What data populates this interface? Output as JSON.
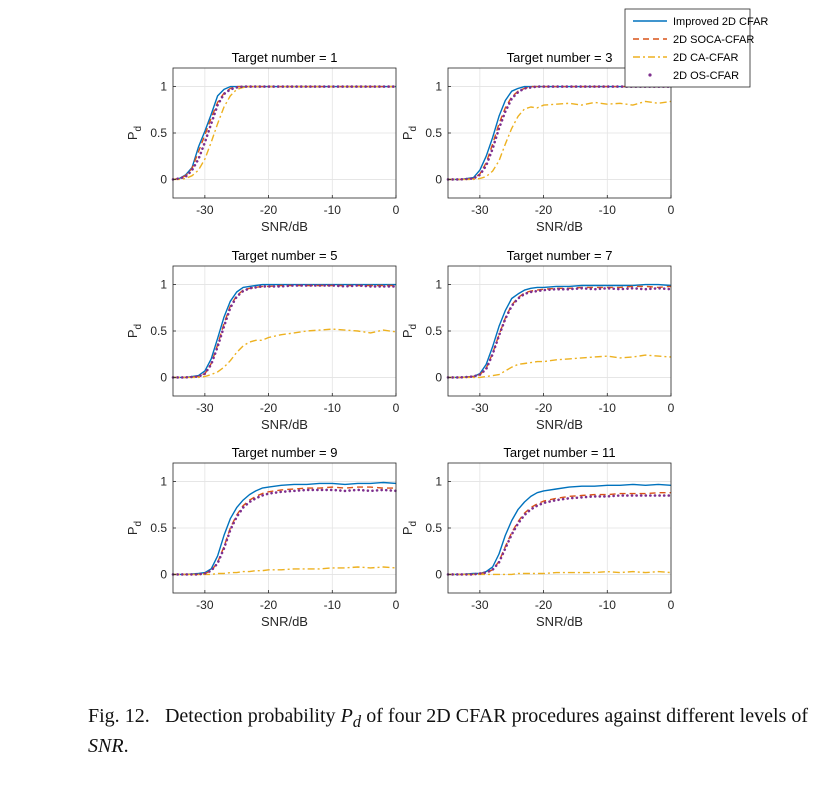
{
  "figure": {
    "caption": {
      "label": "Fig. 12.",
      "text_1": "Detection probability",
      "math_symbol": "P",
      "math_sub": "d",
      "text_2": "of four 2D CFAR procedures against different levels of",
      "math_snr": "SNR",
      "end": "."
    }
  },
  "chart_data": [
    {
      "type": "line",
      "title": "Target number = 1",
      "xlabel": "SNR/dB",
      "ylabel": "P",
      "ylabel_sub": "d",
      "xlim": [
        -35,
        0
      ],
      "ylim": [
        -0.2,
        1.2
      ],
      "xticks": [
        -30,
        -20,
        -10,
        0
      ],
      "yticks": [
        0,
        0.5,
        1
      ],
      "x": [
        -35,
        -34,
        -33,
        -32,
        -31,
        -30,
        -29,
        -28,
        -27,
        -26,
        -25,
        -24,
        -23,
        -22,
        -21,
        -20,
        -18,
        -16,
        -14,
        -12,
        -10,
        -8,
        -6,
        -4,
        -2,
        0
      ],
      "series": [
        {
          "name": "Improved 2D CFAR",
          "values": [
            0,
            0.01,
            0.05,
            0.13,
            0.35,
            0.52,
            0.7,
            0.9,
            0.97,
            1,
            1,
            1,
            1,
            1,
            1,
            1,
            1,
            1,
            1,
            1,
            1,
            1,
            1,
            1,
            1,
            1
          ]
        },
        {
          "name": "2D SOCA-CFAR",
          "values": [
            0,
            0.01,
            0.04,
            0.12,
            0.3,
            0.48,
            0.66,
            0.83,
            0.93,
            0.98,
            1,
            1,
            1,
            1,
            1,
            1,
            1,
            1,
            1,
            1,
            1,
            1,
            1,
            1,
            1,
            1
          ]
        },
        {
          "name": "2D CA-CFAR",
          "values": [
            0,
            0,
            0.01,
            0.04,
            0.1,
            0.22,
            0.4,
            0.6,
            0.78,
            0.9,
            0.97,
            0.99,
            1,
            1,
            1,
            1,
            1,
            1,
            1,
            1,
            1,
            1,
            1,
            1,
            1,
            1
          ]
        },
        {
          "name": "2D OS-CFAR",
          "values": [
            0,
            0.01,
            0.03,
            0.1,
            0.22,
            0.4,
            0.6,
            0.8,
            0.92,
            0.97,
            0.99,
            1,
            1,
            1,
            1,
            1,
            1,
            1,
            1,
            1,
            1,
            1,
            1,
            1,
            1,
            1
          ]
        }
      ]
    },
    {
      "type": "line",
      "title": "Target number = 3",
      "xlabel": "SNR/dB",
      "ylabel": "P",
      "ylabel_sub": "d",
      "xlim": [
        -35,
        0
      ],
      "ylim": [
        -0.2,
        1.2
      ],
      "xticks": [
        -30,
        -20,
        -10,
        0
      ],
      "yticks": [
        0,
        0.5,
        1
      ],
      "x": [
        -35,
        -33,
        -31,
        -30,
        -29,
        -28,
        -27,
        -26,
        -25,
        -24,
        -23,
        -22,
        -21,
        -20,
        -18,
        -16,
        -14,
        -12,
        -10,
        -8,
        -6,
        -4,
        -2,
        0
      ],
      "series": [
        {
          "name": "Improved 2D CFAR",
          "values": [
            0,
            0,
            0.02,
            0.1,
            0.25,
            0.45,
            0.68,
            0.85,
            0.95,
            0.98,
            1,
            1,
            1,
            1,
            1,
            1,
            1,
            1,
            1,
            1,
            1,
            1,
            1,
            1
          ]
        },
        {
          "name": "2D SOCA-CFAR",
          "values": [
            0,
            0,
            0.01,
            0.06,
            0.18,
            0.38,
            0.6,
            0.77,
            0.89,
            0.95,
            0.98,
            1,
            1,
            1,
            1,
            1,
            1,
            1,
            1,
            1,
            1,
            1,
            1,
            1
          ]
        },
        {
          "name": "2D CA-CFAR",
          "values": [
            0,
            0,
            0,
            0.01,
            0.03,
            0.09,
            0.2,
            0.38,
            0.55,
            0.68,
            0.76,
            0.78,
            0.77,
            0.8,
            0.81,
            0.82,
            0.8,
            0.83,
            0.81,
            0.82,
            0.8,
            0.84,
            0.82,
            0.84
          ]
        },
        {
          "name": "2D OS-CFAR",
          "values": [
            0,
            0,
            0.01,
            0.05,
            0.15,
            0.33,
            0.55,
            0.73,
            0.87,
            0.94,
            0.98,
            0.99,
            1,
            1,
            1,
            1,
            1,
            1,
            1,
            1,
            1,
            1,
            1,
            1
          ]
        }
      ]
    },
    {
      "type": "line",
      "title": "Target number = 5",
      "xlabel": "SNR/dB",
      "ylabel": "P",
      "ylabel_sub": "d",
      "xlim": [
        -35,
        0
      ],
      "ylim": [
        -0.2,
        1.2
      ],
      "xticks": [
        -30,
        -20,
        -10,
        0
      ],
      "yticks": [
        0,
        0.5,
        1
      ],
      "x": [
        -35,
        -33,
        -31,
        -30,
        -29,
        -28,
        -27,
        -26,
        -25,
        -24,
        -23,
        -22,
        -21,
        -20,
        -18,
        -16,
        -14,
        -12,
        -10,
        -8,
        -6,
        -4,
        -2,
        0
      ],
      "series": [
        {
          "name": "Improved 2D CFAR",
          "values": [
            0,
            0,
            0.02,
            0.07,
            0.2,
            0.42,
            0.65,
            0.82,
            0.92,
            0.97,
            0.98,
            0.99,
            1,
            1,
            1,
            1,
            1,
            1,
            1,
            1,
            1,
            1,
            1,
            1
          ]
        },
        {
          "name": "2D SOCA-CFAR",
          "values": [
            0,
            0,
            0.01,
            0.04,
            0.15,
            0.35,
            0.58,
            0.77,
            0.88,
            0.94,
            0.96,
            0.97,
            0.98,
            0.98,
            0.99,
            0.99,
            0.99,
            0.99,
            0.99,
            0.99,
            0.99,
            0.99,
            0.99,
            0.99
          ]
        },
        {
          "name": "2D CA-CFAR",
          "values": [
            0,
            0,
            0,
            0.01,
            0.03,
            0.06,
            0.11,
            0.18,
            0.27,
            0.34,
            0.38,
            0.4,
            0.4,
            0.43,
            0.46,
            0.48,
            0.5,
            0.51,
            0.52,
            0.51,
            0.5,
            0.48,
            0.51,
            0.49
          ]
        },
        {
          "name": "2D OS-CFAR",
          "values": [
            0,
            0,
            0.01,
            0.04,
            0.14,
            0.33,
            0.55,
            0.75,
            0.87,
            0.93,
            0.96,
            0.97,
            0.98,
            0.98,
            0.98,
            0.99,
            0.99,
            0.99,
            0.99,
            0.98,
            0.99,
            0.98,
            0.98,
            0.98
          ]
        }
      ]
    },
    {
      "type": "line",
      "title": "Target number = 7",
      "xlabel": "SNR/dB",
      "ylabel": "P",
      "ylabel_sub": "d",
      "xlim": [
        -35,
        0
      ],
      "ylim": [
        -0.2,
        1.2
      ],
      "xticks": [
        -30,
        -20,
        -10,
        0
      ],
      "yticks": [
        0,
        0.5,
        1
      ],
      "x": [
        -35,
        -33,
        -31,
        -30,
        -29,
        -28,
        -27,
        -26,
        -25,
        -24,
        -23,
        -22,
        -21,
        -20,
        -18,
        -16,
        -14,
        -12,
        -10,
        -8,
        -6,
        -4,
        -2,
        0
      ],
      "series": [
        {
          "name": "Improved 2D CFAR",
          "values": [
            0,
            0,
            0.01,
            0.04,
            0.14,
            0.33,
            0.55,
            0.72,
            0.85,
            0.9,
            0.94,
            0.96,
            0.97,
            0.97,
            0.98,
            0.98,
            0.99,
            0.99,
            0.99,
            0.99,
            0.99,
            1,
            1,
            0.99
          ]
        },
        {
          "name": "2D SOCA-CFAR",
          "values": [
            0,
            0,
            0.01,
            0.03,
            0.1,
            0.26,
            0.46,
            0.64,
            0.78,
            0.86,
            0.91,
            0.93,
            0.94,
            0.95,
            0.96,
            0.96,
            0.97,
            0.97,
            0.97,
            0.97,
            0.98,
            0.98,
            0.97,
            0.98
          ]
        },
        {
          "name": "2D CA-CFAR",
          "values": [
            0,
            0,
            0,
            0,
            0.01,
            0.02,
            0.03,
            0.07,
            0.11,
            0.14,
            0.15,
            0.16,
            0.17,
            0.17,
            0.19,
            0.2,
            0.21,
            0.22,
            0.23,
            0.21,
            0.22,
            0.24,
            0.23,
            0.22
          ]
        },
        {
          "name": "2D OS-CFAR",
          "values": [
            0,
            0,
            0.01,
            0.03,
            0.09,
            0.25,
            0.45,
            0.63,
            0.77,
            0.85,
            0.9,
            0.92,
            0.93,
            0.94,
            0.95,
            0.95,
            0.96,
            0.95,
            0.96,
            0.95,
            0.96,
            0.95,
            0.96,
            0.95
          ]
        }
      ]
    },
    {
      "type": "line",
      "title": "Target number = 9",
      "xlabel": "SNR/dB",
      "ylabel": "P",
      "ylabel_sub": "d",
      "xlim": [
        -35,
        0
      ],
      "ylim": [
        -0.2,
        1.2
      ],
      "xticks": [
        -30,
        -20,
        -10,
        0
      ],
      "yticks": [
        0,
        0.5,
        1
      ],
      "x": [
        -35,
        -33,
        -31,
        -30,
        -29,
        -28,
        -27,
        -26,
        -25,
        -24,
        -23,
        -22,
        -21,
        -20,
        -18,
        -16,
        -14,
        -12,
        -10,
        -8,
        -6,
        -4,
        -2,
        0
      ],
      "series": [
        {
          "name": "Improved 2D CFAR",
          "values": [
            0,
            0,
            0.01,
            0.02,
            0.06,
            0.2,
            0.42,
            0.6,
            0.72,
            0.8,
            0.86,
            0.9,
            0.93,
            0.94,
            0.96,
            0.97,
            0.97,
            0.98,
            0.98,
            0.97,
            0.98,
            0.98,
            0.99,
            0.98
          ]
        },
        {
          "name": "2D SOCA-CFAR",
          "values": [
            0,
            0,
            0,
            0.01,
            0.04,
            0.13,
            0.3,
            0.5,
            0.64,
            0.74,
            0.8,
            0.84,
            0.87,
            0.89,
            0.91,
            0.92,
            0.93,
            0.93,
            0.94,
            0.93,
            0.94,
            0.94,
            0.93,
            0.93
          ]
        },
        {
          "name": "2D CA-CFAR",
          "values": [
            0,
            0,
            0,
            0,
            0,
            0.01,
            0.01,
            0.02,
            0.02,
            0.03,
            0.03,
            0.04,
            0.04,
            0.05,
            0.05,
            0.06,
            0.06,
            0.06,
            0.07,
            0.07,
            0.08,
            0.07,
            0.08,
            0.07
          ]
        },
        {
          "name": "2D OS-CFAR",
          "values": [
            0,
            0,
            0,
            0.01,
            0.04,
            0.12,
            0.28,
            0.48,
            0.62,
            0.72,
            0.78,
            0.82,
            0.85,
            0.87,
            0.89,
            0.9,
            0.91,
            0.91,
            0.91,
            0.9,
            0.91,
            0.9,
            0.91,
            0.9
          ]
        }
      ]
    },
    {
      "type": "line",
      "title": "Target number = 11",
      "xlabel": "SNR/dB",
      "ylabel": "P",
      "ylabel_sub": "d",
      "xlim": [
        -35,
        0
      ],
      "ylim": [
        -0.2,
        1.2
      ],
      "xticks": [
        -30,
        -20,
        -10,
        0
      ],
      "yticks": [
        0,
        0.5,
        1
      ],
      "x": [
        -35,
        -33,
        -31,
        -30,
        -29,
        -28,
        -27,
        -26,
        -25,
        -24,
        -23,
        -22,
        -21,
        -20,
        -18,
        -16,
        -14,
        -12,
        -10,
        -8,
        -6,
        -4,
        -2,
        0
      ],
      "series": [
        {
          "name": "Improved 2D CFAR",
          "values": [
            0,
            0,
            0.01,
            0.01,
            0.03,
            0.08,
            0.22,
            0.42,
            0.58,
            0.7,
            0.78,
            0.84,
            0.88,
            0.9,
            0.92,
            0.94,
            0.95,
            0.95,
            0.96,
            0.96,
            0.97,
            0.96,
            0.97,
            0.96
          ]
        },
        {
          "name": "2D SOCA-CFAR",
          "values": [
            0,
            0,
            0,
            0.01,
            0.02,
            0.05,
            0.14,
            0.3,
            0.45,
            0.57,
            0.66,
            0.72,
            0.76,
            0.79,
            0.82,
            0.84,
            0.85,
            0.86,
            0.86,
            0.87,
            0.87,
            0.87,
            0.88,
            0.88
          ]
        },
        {
          "name": "2D CA-CFAR",
          "values": [
            0,
            0,
            0,
            0,
            0,
            0,
            0,
            0,
            0,
            0.01,
            0.01,
            0.01,
            0.01,
            0.01,
            0.02,
            0.02,
            0.02,
            0.02,
            0.03,
            0.02,
            0.03,
            0.02,
            0.03,
            0.02
          ]
        },
        {
          "name": "2D OS-CFAR",
          "values": [
            0,
            0,
            0,
            0.01,
            0.02,
            0.05,
            0.13,
            0.28,
            0.43,
            0.55,
            0.64,
            0.7,
            0.74,
            0.77,
            0.8,
            0.82,
            0.83,
            0.84,
            0.84,
            0.85,
            0.85,
            0.85,
            0.85,
            0.85
          ]
        }
      ]
    }
  ],
  "legend": {
    "entries": [
      {
        "name": "Improved 2D CFAR",
        "color": "#0072BD",
        "style": "solid"
      },
      {
        "name": "2D SOCA-CFAR",
        "color": "#D95319",
        "style": "dashed"
      },
      {
        "name": "2D CA-CFAR",
        "color": "#EDB120",
        "style": "dashdot"
      },
      {
        "name": "2D OS-CFAR",
        "color": "#7E2F8E",
        "style": "dotted"
      }
    ],
    "placement": "top-right"
  }
}
